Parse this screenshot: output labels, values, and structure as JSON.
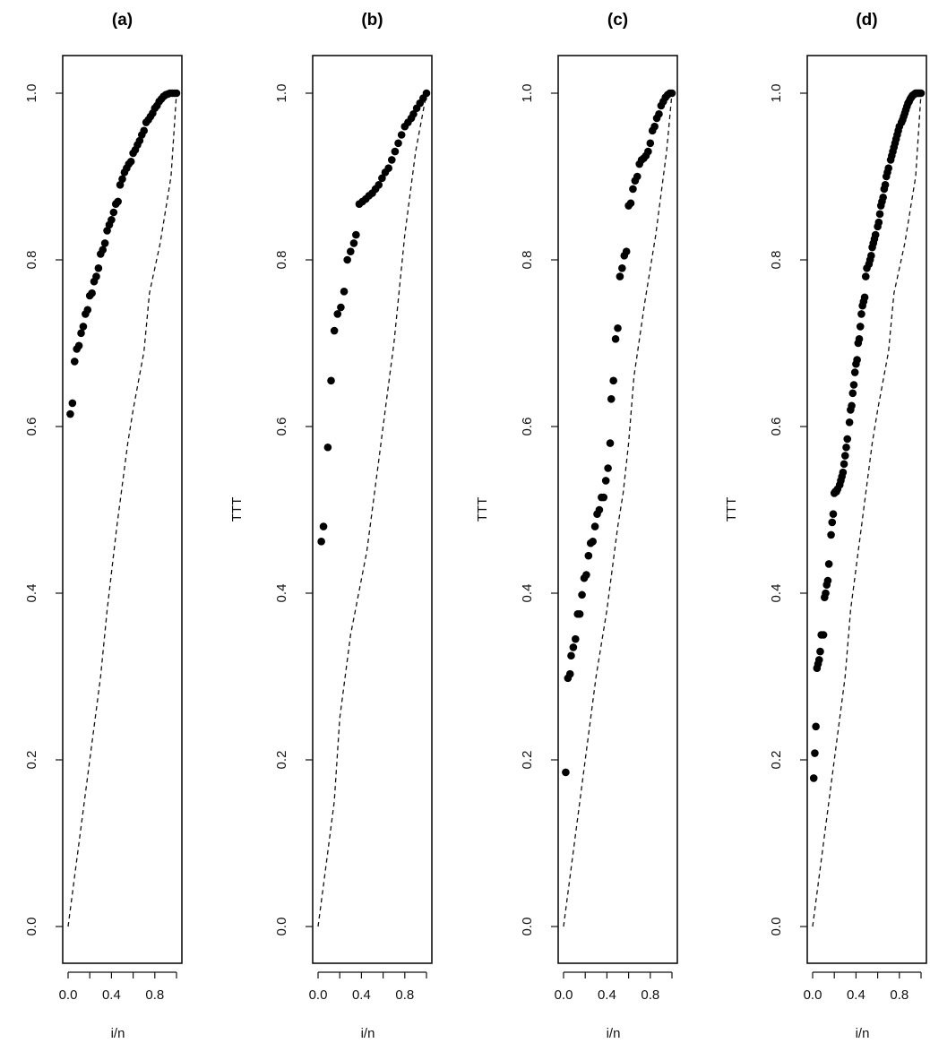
{
  "chart_data": [
    {
      "type": "scatter",
      "title": "(a)",
      "xlabel": "i/n",
      "ylabel": "",
      "xlim": [
        0,
        1
      ],
      "ylim": [
        0,
        1
      ],
      "xticks": [
        "0.0",
        "0.4",
        "0.8"
      ],
      "yticks": [
        "0.0",
        "0.2",
        "0.4",
        "0.6",
        "0.8",
        "1.0"
      ],
      "points": {
        "x": [
          0.02,
          0.04,
          0.06,
          0.08,
          0.1,
          0.12,
          0.14,
          0.16,
          0.18,
          0.2,
          0.22,
          0.24,
          0.26,
          0.28,
          0.3,
          0.32,
          0.34,
          0.36,
          0.38,
          0.4,
          0.42,
          0.44,
          0.46,
          0.48,
          0.5,
          0.52,
          0.54,
          0.56,
          0.58,
          0.6,
          0.62,
          0.64,
          0.66,
          0.68,
          0.7,
          0.72,
          0.74,
          0.76,
          0.78,
          0.8,
          0.82,
          0.84,
          0.86,
          0.88,
          0.9,
          0.92,
          0.94,
          0.96,
          0.98,
          1.0
        ],
        "y": [
          0.615,
          0.628,
          0.678,
          0.693,
          0.697,
          0.712,
          0.72,
          0.735,
          0.74,
          0.757,
          0.76,
          0.774,
          0.78,
          0.79,
          0.807,
          0.812,
          0.82,
          0.835,
          0.842,
          0.848,
          0.857,
          0.867,
          0.87,
          0.89,
          0.897,
          0.905,
          0.91,
          0.915,
          0.918,
          0.928,
          0.932,
          0.938,
          0.943,
          0.95,
          0.955,
          0.965,
          0.968,
          0.972,
          0.976,
          0.982,
          0.985,
          0.99,
          0.993,
          0.996,
          0.998,
          0.999,
          1.0,
          1.0,
          1.0,
          1.0
        ]
      },
      "reference_line": {
        "x": [
          0,
          0.1,
          0.2,
          0.3,
          0.36,
          0.45,
          0.55,
          0.6,
          0.7,
          0.75,
          0.85,
          0.95,
          1.0
        ],
        "y": [
          0,
          0.1,
          0.2,
          0.3,
          0.38,
          0.48,
          0.58,
          0.62,
          0.69,
          0.76,
          0.82,
          0.9,
          1.0
        ]
      }
    },
    {
      "type": "scatter",
      "title": "(b)",
      "xlabel": "i/n",
      "ylabel": "TTT",
      "xlim": [
        0,
        1
      ],
      "ylim": [
        0,
        1
      ],
      "xticks": [
        "0.0",
        "0.4",
        "0.8"
      ],
      "yticks": [
        "0.0",
        "0.2",
        "0.4",
        "0.6",
        "0.8",
        "1.0"
      ],
      "points": {
        "x": [
          0.03,
          0.05,
          0.09,
          0.12,
          0.15,
          0.18,
          0.21,
          0.24,
          0.27,
          0.3,
          0.33,
          0.35,
          0.38,
          0.41,
          0.44,
          0.47,
          0.5,
          0.53,
          0.56,
          0.59,
          0.62,
          0.65,
          0.68,
          0.71,
          0.74,
          0.77,
          0.8,
          0.83,
          0.86,
          0.88,
          0.91,
          0.94,
          0.97,
          1.0
        ],
        "y": [
          0.462,
          0.48,
          0.575,
          0.655,
          0.715,
          0.735,
          0.743,
          0.762,
          0.8,
          0.81,
          0.82,
          0.83,
          0.867,
          0.87,
          0.873,
          0.877,
          0.88,
          0.885,
          0.89,
          0.898,
          0.905,
          0.91,
          0.92,
          0.93,
          0.94,
          0.95,
          0.96,
          0.965,
          0.97,
          0.975,
          0.982,
          0.988,
          0.994,
          1.0
        ]
      },
      "reference_line": {
        "x": [
          0,
          0.05,
          0.1,
          0.15,
          0.2,
          0.3,
          0.45,
          0.55,
          0.65,
          0.7,
          0.8,
          0.9,
          1.0
        ],
        "y": [
          0,
          0.05,
          0.1,
          0.15,
          0.25,
          0.35,
          0.45,
          0.55,
          0.65,
          0.7,
          0.83,
          0.93,
          1.0
        ]
      }
    },
    {
      "type": "scatter",
      "title": "(c)",
      "xlabel": "i/n",
      "ylabel": "TTT",
      "xlim": [
        0,
        1
      ],
      "ylim": [
        0,
        1
      ],
      "xticks": [
        "0.0",
        "0.4",
        "0.8"
      ],
      "yticks": [
        "0.0",
        "0.2",
        "0.4",
        "0.6",
        "0.8",
        "1.0"
      ],
      "points": {
        "x": [
          0.02,
          0.04,
          0.06,
          0.07,
          0.09,
          0.11,
          0.13,
          0.15,
          0.17,
          0.19,
          0.21,
          0.23,
          0.25,
          0.27,
          0.29,
          0.31,
          0.33,
          0.35,
          0.37,
          0.39,
          0.41,
          0.43,
          0.44,
          0.46,
          0.48,
          0.5,
          0.52,
          0.54,
          0.56,
          0.58,
          0.6,
          0.62,
          0.64,
          0.66,
          0.68,
          0.7,
          0.72,
          0.74,
          0.76,
          0.78,
          0.8,
          0.82,
          0.84,
          0.86,
          0.88,
          0.9,
          0.92,
          0.94,
          0.96,
          0.98,
          1.0
        ],
        "y": [
          0.185,
          0.298,
          0.303,
          0.325,
          0.335,
          0.345,
          0.375,
          0.375,
          0.398,
          0.418,
          0.422,
          0.445,
          0.46,
          0.462,
          0.48,
          0.495,
          0.5,
          0.515,
          0.515,
          0.535,
          0.55,
          0.58,
          0.633,
          0.655,
          0.705,
          0.718,
          0.78,
          0.79,
          0.805,
          0.81,
          0.865,
          0.868,
          0.885,
          0.895,
          0.9,
          0.915,
          0.92,
          0.922,
          0.925,
          0.93,
          0.94,
          0.955,
          0.96,
          0.97,
          0.975,
          0.985,
          0.99,
          0.995,
          0.998,
          1.0,
          1.0
        ]
      },
      "reference_line": {
        "x": [
          0,
          0.1,
          0.2,
          0.3,
          0.4,
          0.5,
          0.55,
          0.6,
          0.65,
          0.75,
          0.85,
          0.95,
          1.0
        ],
        "y": [
          0,
          0.1,
          0.2,
          0.3,
          0.38,
          0.48,
          0.52,
          0.58,
          0.66,
          0.75,
          0.83,
          0.93,
          1.0
        ]
      }
    },
    {
      "type": "scatter",
      "title": "(d)",
      "xlabel": "i/n",
      "ylabel": "TTT",
      "xlim": [
        0,
        1
      ],
      "ylim": [
        0,
        1
      ],
      "xticks": [
        "0.0",
        "0.4",
        "0.8"
      ],
      "yticks": [
        "0.0",
        "0.2",
        "0.4",
        "0.6",
        "0.8",
        "1.0"
      ],
      "points": {
        "x": [
          0.01,
          0.02,
          0.03,
          0.04,
          0.05,
          0.06,
          0.07,
          0.08,
          0.1,
          0.11,
          0.12,
          0.13,
          0.14,
          0.15,
          0.17,
          0.18,
          0.19,
          0.2,
          0.21,
          0.22,
          0.23,
          0.25,
          0.26,
          0.27,
          0.28,
          0.29,
          0.3,
          0.31,
          0.32,
          0.34,
          0.35,
          0.36,
          0.37,
          0.38,
          0.39,
          0.4,
          0.41,
          0.42,
          0.43,
          0.44,
          0.45,
          0.46,
          0.47,
          0.48,
          0.49,
          0.5,
          0.52,
          0.53,
          0.54,
          0.55,
          0.56,
          0.57,
          0.58,
          0.6,
          0.61,
          0.62,
          0.63,
          0.64,
          0.65,
          0.66,
          0.67,
          0.68,
          0.69,
          0.7,
          0.72,
          0.73,
          0.74,
          0.75,
          0.76,
          0.77,
          0.78,
          0.79,
          0.8,
          0.82,
          0.83,
          0.84,
          0.85,
          0.86,
          0.87,
          0.88,
          0.89,
          0.9,
          0.91,
          0.92,
          0.93,
          0.94,
          0.95,
          0.96,
          0.97,
          0.98,
          0.99,
          1.0
        ],
        "y": [
          0.178,
          0.208,
          0.24,
          0.31,
          0.315,
          0.32,
          0.33,
          0.35,
          0.35,
          0.395,
          0.4,
          0.41,
          0.415,
          0.435,
          0.47,
          0.485,
          0.495,
          0.52,
          0.522,
          0.522,
          0.525,
          0.53,
          0.535,
          0.54,
          0.545,
          0.555,
          0.565,
          0.575,
          0.585,
          0.605,
          0.62,
          0.625,
          0.64,
          0.65,
          0.665,
          0.675,
          0.68,
          0.7,
          0.705,
          0.72,
          0.735,
          0.745,
          0.75,
          0.755,
          0.78,
          0.79,
          0.795,
          0.8,
          0.805,
          0.815,
          0.82,
          0.825,
          0.83,
          0.84,
          0.845,
          0.855,
          0.865,
          0.87,
          0.875,
          0.885,
          0.89,
          0.9,
          0.905,
          0.91,
          0.92,
          0.925,
          0.93,
          0.935,
          0.94,
          0.945,
          0.95,
          0.955,
          0.96,
          0.965,
          0.968,
          0.972,
          0.976,
          0.98,
          0.984,
          0.988,
          0.99,
          0.993,
          0.995,
          0.997,
          0.998,
          0.999,
          1.0,
          1.0,
          1.0,
          1.0,
          1.0,
          1.0
        ]
      },
      "reference_line": {
        "x": [
          0,
          0.1,
          0.2,
          0.3,
          0.35,
          0.45,
          0.55,
          0.6,
          0.7,
          0.75,
          0.85,
          0.95,
          1.0
        ],
        "y": [
          0,
          0.1,
          0.2,
          0.3,
          0.38,
          0.48,
          0.58,
          0.62,
          0.69,
          0.76,
          0.82,
          0.9,
          1.0
        ]
      }
    }
  ]
}
